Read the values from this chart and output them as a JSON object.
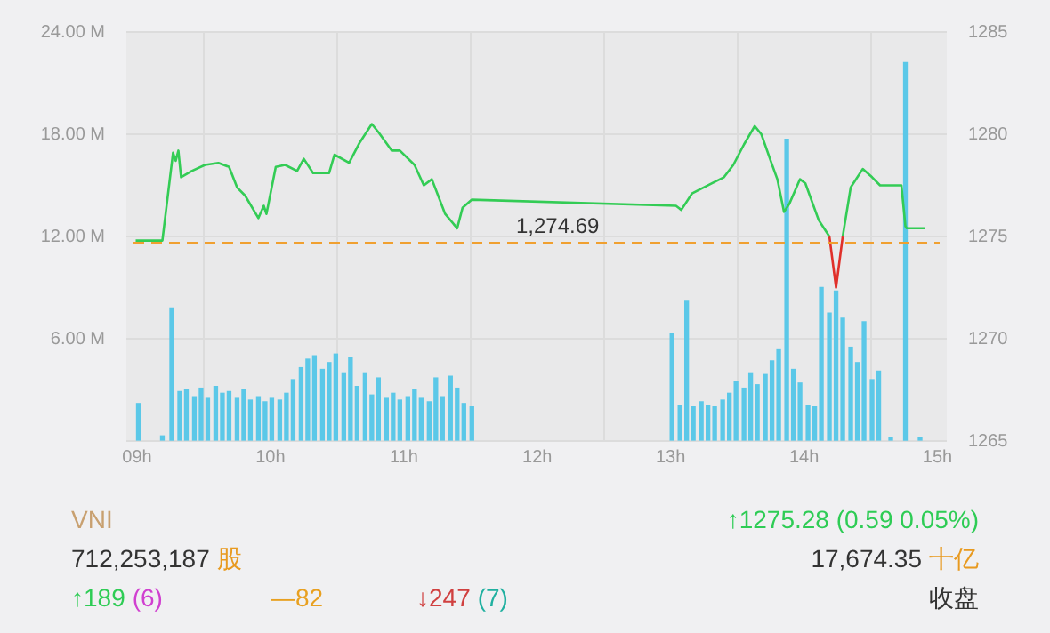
{
  "chart_data": {
    "type": "line",
    "xlim": [
      8.92,
      15.07
    ],
    "xticks": [
      {
        "value": 9,
        "label": "09h"
      },
      {
        "value": 10,
        "label": "10h"
      },
      {
        "value": 11,
        "label": "11h"
      },
      {
        "value": 12,
        "label": "12h"
      },
      {
        "value": 13,
        "label": "13h"
      },
      {
        "value": 14,
        "label": "14h"
      },
      {
        "value": 15,
        "label": "15h"
      }
    ],
    "ylim": [
      0,
      24
    ],
    "yticks": [
      {
        "value": 0,
        "label": null
      },
      {
        "value": 6,
        "label": "6.00 M"
      },
      {
        "value": 12,
        "label": "12.00 M"
      },
      {
        "value": 18,
        "label": "18.00 M"
      },
      {
        "value": 24,
        "label": "24.00 M"
      }
    ],
    "y2lim": [
      1265,
      1285
    ],
    "y2ticks": [
      1265,
      1270,
      1275,
      1280,
      1285
    ],
    "grid": true,
    "legend": false,
    "marker": "none",
    "line_style": "solid",
    "series": [
      {
        "type": "bar",
        "axis": "y",
        "color": "#5bc8e8",
        "x": [
          9.01,
          9.19,
          9.26,
          9.32,
          9.37,
          9.43,
          9.48,
          9.53,
          9.59,
          9.64,
          9.69,
          9.75,
          9.8,
          9.85,
          9.91,
          9.96,
          10.01,
          10.07,
          10.12,
          10.17,
          10.23,
          10.28,
          10.33,
          10.39,
          10.44,
          10.49,
          10.55,
          10.6,
          10.65,
          10.71,
          10.76,
          10.81,
          10.87,
          10.92,
          10.97,
          11.03,
          11.08,
          11.13,
          11.19,
          11.24,
          11.29,
          11.35,
          11.4,
          11.45,
          11.51,
          13.01,
          13.07,
          13.12,
          13.17,
          13.23,
          13.28,
          13.33,
          13.39,
          13.44,
          13.49,
          13.55,
          13.6,
          13.65,
          13.71,
          13.76,
          13.81,
          13.87,
          13.92,
          13.97,
          14.03,
          14.08,
          14.13,
          14.19,
          14.24,
          14.29,
          14.35,
          14.4,
          14.45,
          14.51,
          14.56,
          14.65,
          14.76,
          14.87
        ],
        "values": [
          2.2,
          0.3,
          7.8,
          2.9,
          3.0,
          2.6,
          3.1,
          2.5,
          3.2,
          2.8,
          2.9,
          2.5,
          3.0,
          2.4,
          2.6,
          2.3,
          2.5,
          2.4,
          2.8,
          3.6,
          4.3,
          4.8,
          5.0,
          4.2,
          4.6,
          5.1,
          4.0,
          4.9,
          3.2,
          4.0,
          2.7,
          3.7,
          2.5,
          2.8,
          2.4,
          2.6,
          3.0,
          2.5,
          2.3,
          3.7,
          2.6,
          3.8,
          3.1,
          2.2,
          2.0,
          6.3,
          2.1,
          8.2,
          2.0,
          2.3,
          2.1,
          2.0,
          2.4,
          2.8,
          3.5,
          3.1,
          4.0,
          3.3,
          3.9,
          4.7,
          5.4,
          17.7,
          4.2,
          3.4,
          2.1,
          2.0,
          9.0,
          7.5,
          8.8,
          7.2,
          5.5,
          4.6,
          7.0,
          3.6,
          4.1,
          0.2,
          22.2,
          0.2
        ]
      },
      {
        "axis": "y2",
        "color": "#33cc55",
        "x": [
          8.99,
          9.19,
          9.27,
          9.29,
          9.31,
          9.33,
          9.41,
          9.51,
          9.61,
          9.69,
          9.75,
          9.81,
          9.91,
          9.95,
          9.97,
          10.04,
          10.11,
          10.2,
          10.25,
          10.32,
          10.44,
          10.48,
          10.59,
          10.67,
          10.76,
          10.81,
          10.91,
          10.97,
          11.08,
          11.15,
          11.21,
          11.31,
          11.4,
          11.44,
          11.51,
          13.04,
          13.08,
          13.16,
          13.31,
          13.4,
          13.47,
          13.55,
          13.63,
          13.68,
          13.75,
          13.8,
          13.85,
          13.89,
          13.97,
          14.01,
          14.11,
          14.19,
          14.24,
          14.29,
          14.35,
          14.44,
          14.51,
          14.57,
          14.73,
          14.76,
          14.77,
          14.91
        ],
        "values": [
          1274.8,
          1274.8,
          1279.1,
          1278.7,
          1279.2,
          1277.9,
          1278.2,
          1278.5,
          1278.6,
          1278.4,
          1277.4,
          1277.0,
          1275.9,
          1276.5,
          1276.1,
          1278.4,
          1278.5,
          1278.2,
          1278.8,
          1278.1,
          1278.1,
          1279.0,
          1278.6,
          1279.6,
          1280.5,
          1280.1,
          1279.2,
          1279.2,
          1278.5,
          1277.5,
          1277.8,
          1276.1,
          1275.4,
          1276.4,
          1276.8,
          1276.5,
          1276.3,
          1277.1,
          1277.6,
          1277.9,
          1278.5,
          1279.5,
          1280.4,
          1280.0,
          1278.7,
          1277.8,
          1276.2,
          1276.6,
          1277.8,
          1277.6,
          1275.8,
          1275.0,
          null,
          1275.0,
          1277.4,
          1278.3,
          1277.9,
          1277.5,
          1277.5,
          1275.5,
          1275.4,
          1275.4
        ]
      },
      {
        "axis": "y2",
        "color": "#e0302a",
        "x": [
          14.19,
          14.24,
          14.29
        ],
        "values": [
          1275.0,
          1272.5,
          1275.0
        ]
      }
    ],
    "ref_lines": [
      {
        "axis": "y2",
        "value": 1274.69,
        "label": "1,274.69",
        "color": "#f0a030",
        "line_style": "dashed"
      }
    ],
    "annotations": [
      "VNI",
      "712,253,187",
      "股",
      "↑1275.28 (0.59 0.05%)",
      "17,674.35",
      "十亿",
      "↑189",
      "(6)",
      "—82",
      "↓247",
      "(7)",
      "收盘"
    ]
  }
}
